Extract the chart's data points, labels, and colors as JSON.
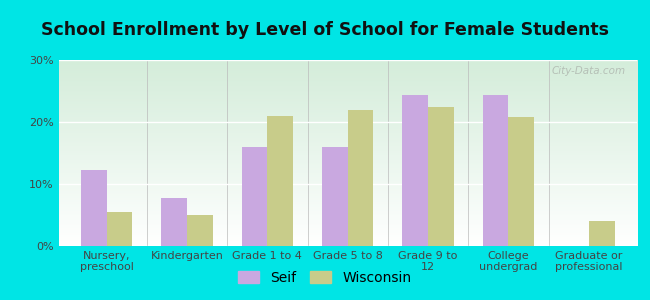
{
  "title": "School Enrollment by Level of School for Female Students",
  "categories": [
    "Nursery,\npreschool",
    "Kindergarten",
    "Grade 1 to 4",
    "Grade 5 to 8",
    "Grade 9 to\n12",
    "College\nundergrad",
    "Graduate or\nprofessional"
  ],
  "seif_values": [
    12.2,
    7.8,
    16.0,
    16.0,
    24.3,
    24.3,
    0
  ],
  "wisconsin_values": [
    5.5,
    5.0,
    21.0,
    22.0,
    22.5,
    20.8,
    4.0
  ],
  "seif_color": "#c9a8e0",
  "wisconsin_color": "#c8cc8a",
  "background_color": "#00e5e5",
  "grad_top": "#ffffff",
  "grad_bottom": "#d4edda",
  "ylim": [
    0,
    30
  ],
  "yticks": [
    0,
    10,
    20,
    30
  ],
  "ytick_labels": [
    "0%",
    "10%",
    "20%",
    "30%"
  ],
  "bar_width": 0.32,
  "title_fontsize": 12.5,
  "tick_fontsize": 8,
  "legend_fontsize": 10,
  "watermark": "City-Data.com"
}
